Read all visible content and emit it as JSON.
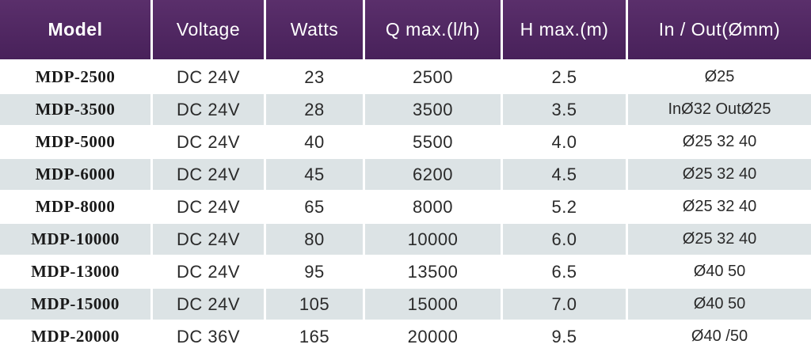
{
  "table": {
    "header": [
      "Model",
      "Voltage",
      "Watts",
      "Q  max.(l/h)",
      "H max.(m)",
      "In / Out(Ømm)"
    ],
    "rows": [
      [
        "MDP-2500",
        "DC 24V",
        "23",
        "2500",
        "2.5",
        "Ø25"
      ],
      [
        "MDP-3500",
        "DC 24V",
        "28",
        "3500",
        "3.5",
        "InØ32 OutØ25"
      ],
      [
        "MDP-5000",
        "DC 24V",
        "40",
        "5500",
        "4.0",
        "Ø25 32 40"
      ],
      [
        "MDP-6000",
        "DC 24V",
        "45",
        "6200",
        "4.5",
        "Ø25 32 40"
      ],
      [
        "MDP-8000",
        "DC 24V",
        "65",
        "8000",
        "5.2",
        "Ø25 32 40"
      ],
      [
        "MDP-10000",
        "DC 24V",
        "80",
        "10000",
        "6.0",
        "Ø25 32 40"
      ],
      [
        "MDP-13000",
        "DC 24V",
        "95",
        "13500",
        "6.5",
        "Ø40 50"
      ],
      [
        "MDP-15000",
        "DC 24V",
        "105",
        "15000",
        "7.0",
        "Ø40 50"
      ],
      [
        "MDP-20000",
        "DC 36V",
        "165",
        "20000",
        "9.5",
        "Ø40 /50"
      ]
    ]
  }
}
